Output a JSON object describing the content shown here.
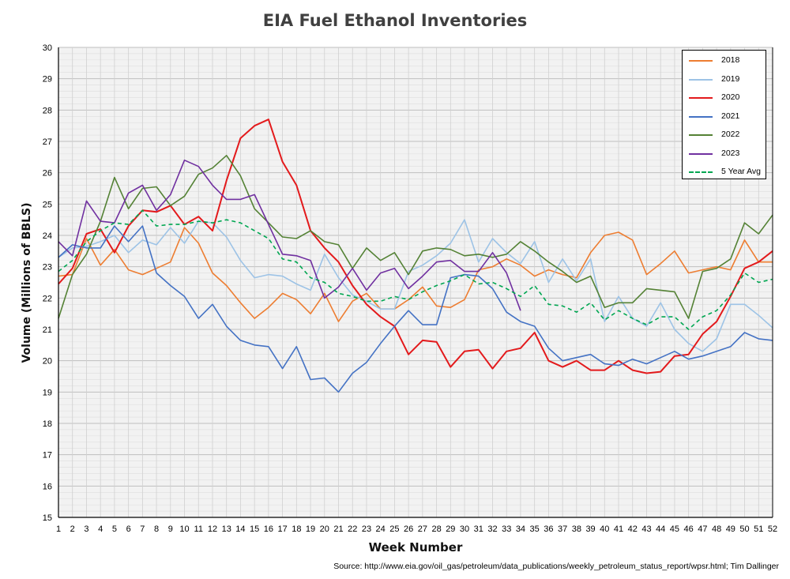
{
  "chart_data": {
    "type": "line",
    "title": "EIA Fuel Ethanol Inventories",
    "xlabel": "Week Number",
    "ylabel": "Volume (Millions of BBLS)",
    "source": "Source: http://www.eia.gov/oil_gas/petroleum/data_publications/weekly_petroleum_status_report/wpsr.html; Tim Dallinger",
    "xlim": [
      1,
      52
    ],
    "ylim": [
      15,
      30
    ],
    "x_ticks": [
      1,
      2,
      3,
      4,
      5,
      6,
      7,
      8,
      9,
      10,
      11,
      12,
      13,
      14,
      15,
      16,
      17,
      18,
      19,
      20,
      21,
      22,
      23,
      24,
      25,
      26,
      27,
      28,
      29,
      30,
      31,
      32,
      33,
      34,
      35,
      36,
      37,
      38,
      39,
      40,
      41,
      42,
      43,
      44,
      45,
      46,
      47,
      48,
      49,
      50,
      51,
      52
    ],
    "y_ticks": [
      15,
      16,
      17,
      18,
      19,
      20,
      21,
      22,
      23,
      24,
      25,
      26,
      27,
      28,
      29,
      30
    ],
    "grid": true,
    "legend_position": "top-right",
    "series": [
      {
        "name": "2018",
        "color": "#ED7D31",
        "dashed": false,
        "width": 1.6,
        "values": [
          22.7,
          22.75,
          23.9,
          23.05,
          23.55,
          22.9,
          22.75,
          22.95,
          23.15,
          24.25,
          23.75,
          22.8,
          22.4,
          21.85,
          21.35,
          21.7,
          22.15,
          21.95,
          21.5,
          22.15,
          21.25,
          21.9,
          22.15,
          21.65,
          21.65,
          21.95,
          22.35,
          21.75,
          21.7,
          21.95,
          22.9,
          23.0,
          23.25,
          23.05,
          22.7,
          22.9,
          22.75,
          22.65,
          23.45,
          24.0,
          24.1,
          23.85,
          22.75,
          23.1,
          23.5,
          22.8,
          22.9,
          23.0,
          22.9,
          23.85,
          23.15,
          23.15
        ]
      },
      {
        "name": "2019",
        "color": "#9DC3E6",
        "dashed": false,
        "width": 1.6,
        "values": [
          23.3,
          23.6,
          23.65,
          23.8,
          24.0,
          23.45,
          23.85,
          23.7,
          24.25,
          23.75,
          24.45,
          24.4,
          23.95,
          23.2,
          22.65,
          22.75,
          22.7,
          22.45,
          22.25,
          23.4,
          22.65,
          22.1,
          21.9,
          21.65,
          21.65,
          22.85,
          23.05,
          23.35,
          23.75,
          24.5,
          23.15,
          23.9,
          23.45,
          23.1,
          23.8,
          22.5,
          23.25,
          22.55,
          23.25,
          21.25,
          22.05,
          21.35,
          21.1,
          21.85,
          21.0,
          20.55,
          20.3,
          20.7,
          21.8,
          21.8,
          21.45,
          21.05
        ]
      },
      {
        "name": "2020",
        "color": "#E31A1C",
        "dashed": false,
        "width": 2.0,
        "values": [
          22.45,
          22.95,
          24.05,
          24.2,
          23.45,
          24.3,
          24.8,
          24.75,
          24.95,
          24.35,
          24.6,
          24.15,
          25.75,
          27.1,
          27.5,
          27.7,
          26.35,
          25.6,
          24.15,
          23.6,
          23.15,
          22.4,
          21.8,
          21.4,
          21.1,
          20.2,
          20.65,
          20.6,
          19.8,
          20.3,
          20.35,
          19.75,
          20.3,
          20.4,
          20.9,
          20.0,
          19.8,
          20.0,
          19.7,
          19.7,
          20.0,
          19.7,
          19.6,
          19.65,
          20.15,
          20.2,
          20.85,
          21.25,
          22.05,
          22.95,
          23.15,
          23.5
        ]
      },
      {
        "name": "2021",
        "color": "#4472C4",
        "dashed": false,
        "width": 1.6,
        "values": [
          23.3,
          23.7,
          23.6,
          23.6,
          24.3,
          23.8,
          24.3,
          22.8,
          22.4,
          22.05,
          21.35,
          21.8,
          21.1,
          20.65,
          20.5,
          20.45,
          19.75,
          20.45,
          19.4,
          19.45,
          19.0,
          19.6,
          19.95,
          20.55,
          21.1,
          21.6,
          21.15,
          21.15,
          22.65,
          22.75,
          22.7,
          22.3,
          21.55,
          21.25,
          21.1,
          20.4,
          20.0,
          20.1,
          20.2,
          19.9,
          19.85,
          20.05,
          19.9,
          20.1,
          20.3,
          20.05,
          20.15,
          20.3,
          20.45,
          20.9,
          20.7,
          20.65
        ]
      },
      {
        "name": "2022",
        "color": "#548235",
        "dashed": false,
        "width": 1.6,
        "values": [
          21.35,
          22.75,
          23.4,
          24.45,
          25.85,
          24.85,
          25.5,
          25.55,
          24.95,
          25.25,
          25.95,
          26.15,
          26.55,
          25.9,
          24.85,
          24.4,
          23.95,
          23.9,
          24.15,
          23.8,
          23.7,
          22.95,
          23.6,
          23.2,
          23.45,
          22.75,
          23.5,
          23.6,
          23.55,
          23.35,
          23.4,
          23.3,
          23.4,
          23.8,
          23.5,
          23.15,
          22.85,
          22.5,
          22.7,
          21.7,
          21.85,
          21.85,
          22.3,
          22.25,
          22.2,
          21.35,
          22.85,
          22.95,
          23.25,
          24.4,
          24.05,
          24.65
        ]
      },
      {
        "name": "2023",
        "color": "#7030A0",
        "dashed": false,
        "width": 1.6,
        "values": [
          23.8,
          23.35,
          25.1,
          24.45,
          24.4,
          25.35,
          25.6,
          24.8,
          25.3,
          26.4,
          26.2,
          25.6,
          25.15,
          25.15,
          25.3,
          24.35,
          23.4,
          23.35,
          23.2,
          22.0,
          22.35,
          22.95,
          22.25,
          22.8,
          22.95,
          22.3,
          22.7,
          23.15,
          23.2,
          22.85,
          22.85,
          23.45,
          22.8,
          21.6
        ]
      },
      {
        "name": "5 Year Avg",
        "color": "#00A651",
        "dashed": true,
        "width": 1.6,
        "values": [
          22.85,
          23.2,
          23.8,
          24.15,
          24.4,
          24.35,
          24.8,
          24.3,
          24.35,
          24.35,
          24.45,
          24.4,
          24.5,
          24.4,
          24.15,
          23.9,
          23.25,
          23.15,
          22.65,
          22.5,
          22.15,
          22.05,
          21.9,
          21.9,
          22.05,
          21.95,
          22.2,
          22.4,
          22.55,
          22.75,
          22.45,
          22.5,
          22.3,
          22.05,
          22.4,
          21.8,
          21.75,
          21.55,
          21.85,
          21.3,
          21.6,
          21.35,
          21.15,
          21.4,
          21.4,
          21.0,
          21.4,
          21.6,
          22.1,
          22.8,
          22.5,
          22.6
        ]
      }
    ]
  }
}
